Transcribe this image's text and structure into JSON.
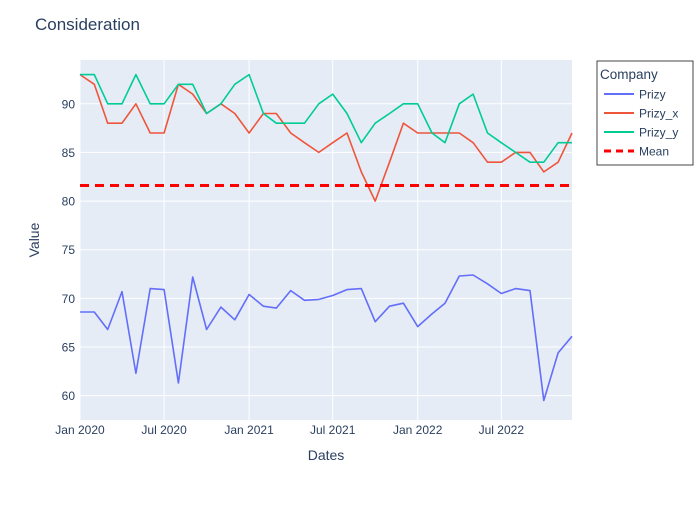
{
  "chart_data": {
    "type": "line",
    "title": "Consideration",
    "xlabel": "Dates",
    "ylabel": "Value",
    "x_range": [
      "2020-01-01",
      "2022-12-01"
    ],
    "ylim": [
      57.5,
      94.5
    ],
    "y_ticks": [
      60,
      65,
      70,
      75,
      80,
      85,
      90
    ],
    "x_ticks": [
      {
        "date": "2020-01-01",
        "label": "Jan 2020"
      },
      {
        "date": "2020-07-01",
        "label": "Jul 2020"
      },
      {
        "date": "2021-01-01",
        "label": "Jan 2021"
      },
      {
        "date": "2021-07-01",
        "label": "Jul 2021"
      },
      {
        "date": "2022-01-01",
        "label": "Jan 2022"
      },
      {
        "date": "2022-07-01",
        "label": "Jul 2022"
      }
    ],
    "grid": true,
    "legend": {
      "title": "Company",
      "placement": "right"
    },
    "dates": [
      "2020-01-01",
      "2020-02-01",
      "2020-03-01",
      "2020-04-01",
      "2020-05-01",
      "2020-06-01",
      "2020-07-01",
      "2020-08-01",
      "2020-09-01",
      "2020-10-01",
      "2020-11-01",
      "2020-12-01",
      "2021-01-01",
      "2021-02-01",
      "2021-03-01",
      "2021-04-01",
      "2021-05-01",
      "2021-06-01",
      "2021-07-01",
      "2021-08-01",
      "2021-09-01",
      "2021-10-01",
      "2021-11-01",
      "2021-12-01",
      "2022-01-01",
      "2022-02-01",
      "2022-03-01",
      "2022-04-01",
      "2022-05-01",
      "2022-06-01",
      "2022-07-01",
      "2022-08-01",
      "2022-09-01",
      "2022-10-01",
      "2022-11-01",
      "2022-12-01"
    ],
    "series": [
      {
        "name": "Prizy",
        "color": "#636efa",
        "dash": "solid",
        "values": [
          68.6,
          68.6,
          66.8,
          70.7,
          62.3,
          71.0,
          70.9,
          61.3,
          72.2,
          66.8,
          69.1,
          67.8,
          70.4,
          69.2,
          69.0,
          70.8,
          69.8,
          69.9,
          70.3,
          70.9,
          71.0,
          67.6,
          69.2,
          69.5,
          67.1,
          68.4,
          69.5,
          72.3,
          72.4,
          71.5,
          70.5,
          71.0,
          70.8,
          59.5,
          64.4,
          66.1
        ]
      },
      {
        "name": "Prizy_x",
        "color": "#ef553b",
        "dash": "solid",
        "values": [
          93,
          92,
          88,
          88,
          90,
          87,
          87,
          92,
          91,
          89,
          90,
          89,
          87,
          89,
          89,
          87,
          86,
          85,
          86,
          87,
          83,
          80,
          84,
          88,
          87,
          87,
          87,
          87,
          86,
          84,
          84,
          85,
          85,
          83,
          84,
          87
        ]
      },
      {
        "name": "Prizy_y",
        "color": "#00cc96",
        "dash": "solid",
        "values": [
          93,
          93,
          90,
          90,
          93,
          90,
          90,
          92,
          92,
          89,
          90,
          92,
          93,
          89,
          88,
          88,
          88,
          90,
          91,
          89,
          86,
          88,
          89,
          90,
          90,
          87,
          86,
          90,
          91,
          87,
          86,
          85,
          84,
          84,
          86,
          86
        ]
      },
      {
        "name": "Mean",
        "color": "#ff0000",
        "dash": "dash",
        "constant": 81.6
      }
    ]
  }
}
